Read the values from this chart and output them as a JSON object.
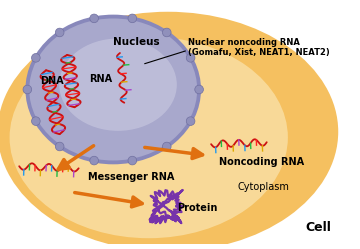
{
  "bg_outer_color": "#FFFFFF",
  "cell_color": "#F5C060",
  "cell_inner_color": "#FAE5B0",
  "nucleus_outer_color": "#8888BB",
  "nucleus_color": "#A8A8CC",
  "nucleus_inner_color": "#C8C8E0",
  "label_nucleus": "Nucleus",
  "label_dna": "DNA",
  "label_rna": "RNA",
  "label_nuclear_ncrna_line1": "Nuclear noncoding RNA",
  "label_nuclear_ncrna_line2": "(Gomafu, Xist, NEAT1, NEAT2)",
  "label_mrna": "Messenger RNA",
  "label_ncrna": "Noncoding RNA",
  "label_protein": "Protein",
  "label_cytoplasm": "Cytoplasm",
  "label_cell": "Cell",
  "arrow_color": "#E07010",
  "rna_red": "#CC1111",
  "tick_colors": [
    "#2299EE",
    "#22BB44",
    "#FF2222",
    "#DDAA00",
    "#AA44CC"
  ],
  "dna_color": "#CC1111",
  "protein_color": "#7733AA"
}
